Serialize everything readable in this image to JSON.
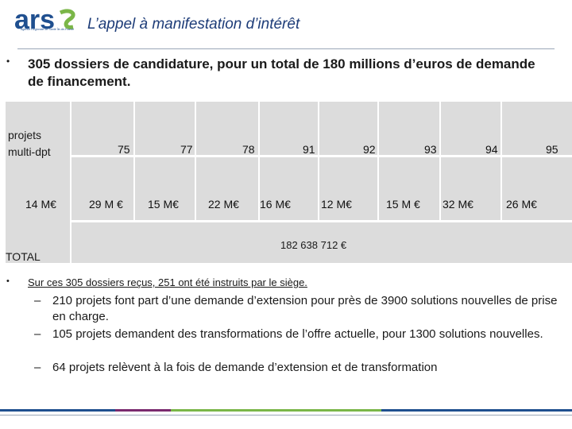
{
  "logo": {
    "text": "ars",
    "subtitle": "Agence Régionale de Santé Île-de-France",
    "color_primary": "#1f4f8f",
    "color_accent": "#7ab648"
  },
  "title": "L’appel à manifestation d’intérêt",
  "bullet1": "305 dossiers de candidature, pour un total de 180 millions d’euros de demande de financement.",
  "table": {
    "row_label_line1": "projets",
    "row_label_line2": "multi-dpt",
    "departments": [
      "75",
      "77",
      "78",
      "91",
      "92",
      "93",
      "94",
      "95"
    ],
    "first_amount": "14 M€",
    "amounts": [
      "29 M €",
      "15 M€",
      "22 M€",
      "16 M€",
      "12 M€",
      "15 M €",
      "32 M€",
      "26 M€"
    ],
    "total_label": "TOTAL",
    "total_value": "182 638 712 €"
  },
  "bullet2": "Sur ces 305 dossiers reçus, 251 ont été instruits par le siège.",
  "sub_bullets": [
    "210 projets font part d’une demande d’extension pour près de 3900 solutions nouvelles de prise en charge.",
    "105 projets demandent des transformations de l’offre actuelle, pour 1300 solutions nouvelles.",
    "64 projets relèvent à la fois de demande d’extension et de transformation"
  ],
  "dash": "–",
  "bullet_glyph": "•"
}
